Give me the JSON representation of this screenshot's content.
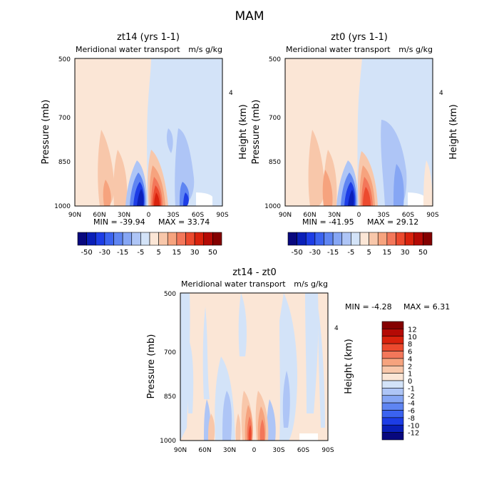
{
  "title": "MAM",
  "chart_data": [
    {
      "type": "contour",
      "id": "p1",
      "title": "zt14 (yrs 1-1)",
      "subtitle_left": "Meridional water transport",
      "subtitle_right": "m/s g/kg",
      "xlabel": "",
      "ylabel": "Pressure (mb)",
      "ylabel_right": "Height (km)",
      "x_ticks": [
        "90N",
        "60N",
        "30N",
        "0",
        "30S",
        "60S",
        "90S"
      ],
      "y_ticks": [
        "500",
        "700",
        "850",
        "1000"
      ],
      "y_right_ticks": [
        "4"
      ],
      "min_label": "MIN = -39.94",
      "max_label": "MAX = 33.74"
    },
    {
      "type": "contour",
      "id": "p2",
      "title": "zt0 (yrs 1-1)",
      "subtitle_left": "Meridional water transport",
      "subtitle_right": "m/s g/kg",
      "xlabel": "",
      "ylabel": "Pressure (mb)",
      "ylabel_right": "Height (km)",
      "x_ticks": [
        "90N",
        "60N",
        "30N",
        "0",
        "30S",
        "60S",
        "90S"
      ],
      "y_ticks": [
        "500",
        "700",
        "850",
        "1000"
      ],
      "y_right_ticks": [
        "4"
      ],
      "min_label": "MIN = -41.95",
      "max_label": "MAX = 29.12"
    },
    {
      "type": "contour",
      "id": "p3",
      "title": "zt14 - zt0",
      "subtitle_left": "Meridional water transport",
      "subtitle_right": "m/s g/kg",
      "xlabel": "",
      "ylabel": "Pressure (mb)",
      "ylabel_right": "Height (km)",
      "x_ticks": [
        "90N",
        "60N",
        "30N",
        "0",
        "30S",
        "60S",
        "90S"
      ],
      "y_ticks": [
        "500",
        "700",
        "850",
        "1000"
      ],
      "y_right_ticks": [
        "4"
      ],
      "min_label": "MIN =  -4.28",
      "max_label": "MAX =  6.31"
    }
  ],
  "colorbar_top": {
    "colors": [
      "#08087e",
      "#0a1fb8",
      "#1d3de6",
      "#3b63f0",
      "#5f85f2",
      "#86a6f4",
      "#aec5f6",
      "#d3e3f8",
      "#fbe6d6",
      "#f8c7aa",
      "#f6a37e",
      "#f3775a",
      "#ec4a2e",
      "#d9220d",
      "#b40a05",
      "#840000"
    ],
    "labels": [
      "-50",
      "-30",
      "-15",
      "-5",
      "5",
      "15",
      "30",
      "50"
    ]
  },
  "colorbar_bottom": {
    "colors": [
      "#840000",
      "#b40a05",
      "#d9220d",
      "#ec4a2e",
      "#f3775a",
      "#f6a37e",
      "#f8c7aa",
      "#fbe6d6",
      "#d3e3f8",
      "#aec5f6",
      "#86a6f4",
      "#5f85f2",
      "#3b63f0",
      "#1d3de6",
      "#0a1fb8",
      "#08087e"
    ],
    "labels": [
      "12",
      "10",
      "8",
      "6",
      "4",
      "2",
      "1",
      "0",
      "-1",
      "-2",
      "-4",
      "-6",
      "-8",
      "-10",
      "-12"
    ]
  }
}
